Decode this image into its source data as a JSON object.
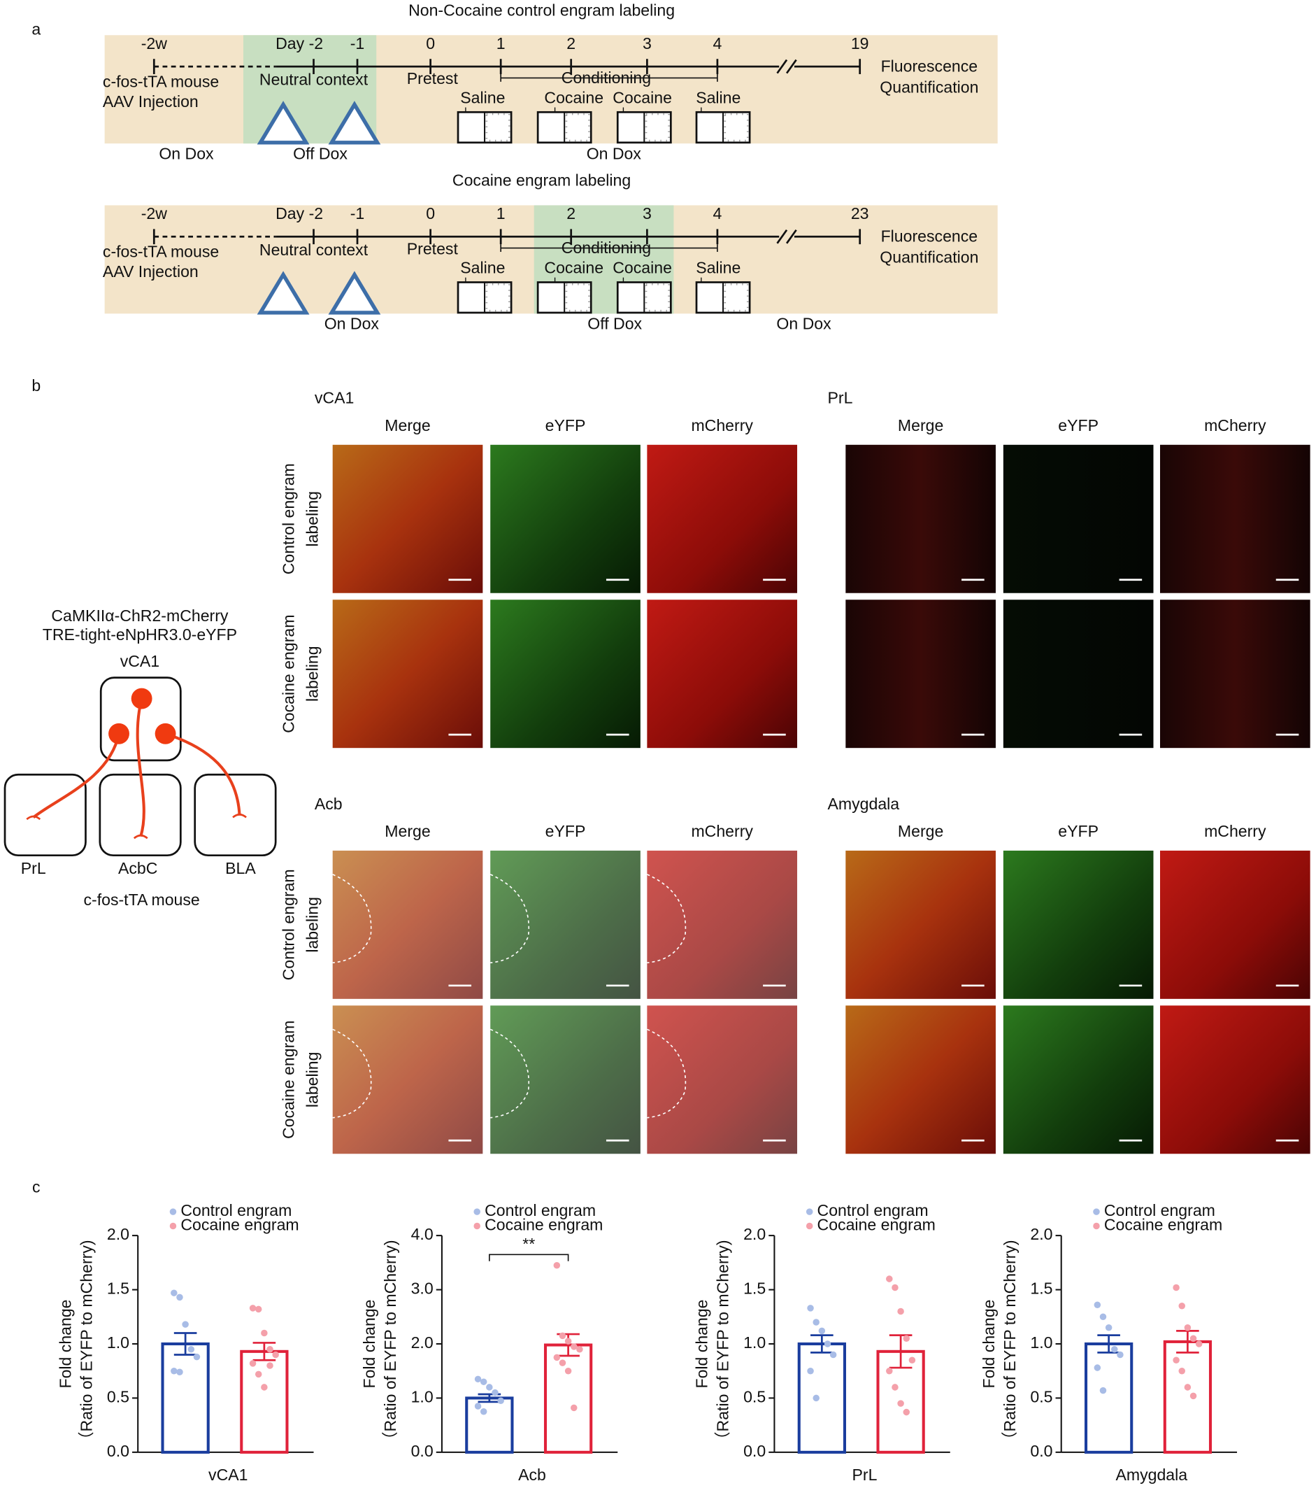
{
  "panel_labels": [
    "a",
    "b",
    "c"
  ],
  "timelines": [
    {
      "title": "Non-Cocaine control engram labeling",
      "ticks": [
        "-2w",
        "Day -2",
        "-1",
        "0",
        "1",
        "2",
        "3",
        "4",
        "19"
      ],
      "left_labels": [
        "c-fos-tTA mouse",
        "AAV Injection"
      ],
      "context": "Neutral context",
      "pretest": "Pretest",
      "conditioning": "Conditioning",
      "sessions": [
        "Saline",
        "Cocaine",
        "Cocaine",
        "Saline"
      ],
      "end_labels": [
        "Fluorescence",
        "Quantification"
      ],
      "dox": [
        "On Dox",
        "Off Dox",
        "On Dox"
      ]
    },
    {
      "title": "Cocaine engram labeling",
      "ticks": [
        "-2w",
        "Day -2",
        "-1",
        "0",
        "1",
        "2",
        "3",
        "4",
        "23"
      ],
      "left_labels": [
        "c-fos-tTA mouse",
        "AAV Injection"
      ],
      "context": "Neutral context",
      "pretest": "Pretest",
      "conditioning": "Conditioning",
      "sessions": [
        "Saline",
        "Cocaine",
        "Cocaine",
        "Saline"
      ],
      "end_labels": [
        "Fluorescence",
        "Quantification"
      ],
      "dox": [
        "On Dox",
        "Off Dox",
        "On Dox"
      ]
    }
  ],
  "diagram": {
    "constructs": [
      "CaMKIIα-ChR2-mCherry",
      "TRE-tight-eNpHR3.0-eYFP"
    ],
    "source": "vCA1",
    "targets": [
      "PrL",
      "AcbC",
      "BLA"
    ],
    "caption": "c-fos-tTA mouse"
  },
  "micrographs": [
    {
      "name": "vCA1",
      "columns": [
        "Merge",
        "eYFP",
        "mCherry"
      ],
      "rows": [
        [
          "Control engram",
          "labeling"
        ],
        [
          "Cocaine engram",
          "labeling"
        ]
      ]
    },
    {
      "name": "PrL",
      "columns": [
        "Merge",
        "eYFP",
        "mCherry"
      ],
      "rows": []
    },
    {
      "name": "Acb",
      "columns": [
        "Merge",
        "eYFP",
        "mCherry"
      ],
      "rows": [
        [
          "Control engram",
          "labeling"
        ],
        [
          "Cocaine engram",
          "labeling"
        ]
      ]
    },
    {
      "name": "Amygdala",
      "columns": [
        "Merge",
        "eYFP",
        "mCherry"
      ],
      "rows": []
    }
  ],
  "chart_data": [
    {
      "type": "bar",
      "xlabel": "vCA1",
      "ylabel": [
        "Fold change",
        "（Ratio of EYFP to mCherry)"
      ],
      "ylim": [
        0,
        2
      ],
      "yticks": [
        {
          "value": 0,
          "label": "0.0"
        },
        0.5,
        {
          "value": 1,
          "label": "1.0"
        },
        1.5,
        {
          "value": 2,
          "label": "2.0"
        }
      ],
      "series": [
        {
          "name": "Control engram",
          "color": "#1a3d9e",
          "point_color": "#a8bce6",
          "values": [
            1.0
          ],
          "errors": [
            0.1
          ],
          "points": [
            1.47,
            1.43,
            1.18,
            0.95,
            0.88,
            0.75,
            0.74
          ]
        },
        {
          "name": "Cocaine engram",
          "color": "#e0223a",
          "point_color": "#f4a0aa",
          "values": [
            0.93
          ],
          "errors": [
            0.08
          ],
          "points": [
            1.33,
            1.32,
            1.1,
            0.95,
            0.9,
            0.82,
            0.72,
            0.6,
            0.8
          ]
        }
      ]
    },
    {
      "type": "bar",
      "xlabel": "Acb",
      "ylabel": [
        "Fold change",
        "（Ratio of EYFP to mCherry)"
      ],
      "ylim": [
        0,
        4
      ],
      "yticks": [
        {
          "value": 0,
          "label": "0.0"
        },
        {
          "value": 1,
          "label": "1.0"
        },
        {
          "value": 2,
          "label": "2.0"
        },
        {
          "value": 3,
          "label": "3.0"
        },
        {
          "value": 4,
          "label": "4.0"
        }
      ],
      "annotation": "**",
      "series": [
        {
          "name": "Control engram",
          "color": "#1a3d9e",
          "point_color": "#a8bce6",
          "values": [
            1.0
          ],
          "errors": [
            0.07
          ],
          "points": [
            1.35,
            1.3,
            1.2,
            1.1,
            0.95,
            0.85,
            0.75
          ]
        },
        {
          "name": "Cocaine engram",
          "color": "#e0223a",
          "point_color": "#f4a0aa",
          "values": [
            1.98
          ],
          "errors": [
            0.2
          ],
          "points": [
            3.45,
            2.15,
            2.05,
            1.95,
            1.9,
            1.75,
            1.65,
            1.5,
            0.82
          ]
        }
      ]
    },
    {
      "type": "bar",
      "xlabel": "PrL",
      "ylabel": [
        "Fold change",
        "（Ratio of EYFP to mCherry)"
      ],
      "ylim": [
        0,
        2
      ],
      "yticks": [
        {
          "value": 0,
          "label": "0.0"
        },
        0.5,
        {
          "value": 1,
          "label": "1.0"
        },
        1.5,
        {
          "value": 2,
          "label": "2.0"
        }
      ],
      "series": [
        {
          "name": "Control engram",
          "color": "#1a3d9e",
          "point_color": "#a8bce6",
          "values": [
            1.0
          ],
          "errors": [
            0.08
          ],
          "points": [
            1.33,
            1.2,
            1.12,
            1.0,
            0.9,
            0.75,
            0.5
          ]
        },
        {
          "name": "Cocaine engram",
          "color": "#e0223a",
          "point_color": "#f4a0aa",
          "values": [
            0.93
          ],
          "errors": [
            0.15
          ],
          "points": [
            1.6,
            1.52,
            1.3,
            1.05,
            0.85,
            0.75,
            0.6,
            0.45,
            0.37
          ]
        }
      ]
    },
    {
      "type": "bar",
      "xlabel": "Amygdala",
      "ylabel": [
        "Fold change",
        "（Ratio of EYFP to mCherry)"
      ],
      "ylim": [
        0,
        2
      ],
      "yticks": [
        {
          "value": 0,
          "label": "0.0"
        },
        0.5,
        {
          "value": 1,
          "label": "1.0"
        },
        1.5,
        {
          "value": 2,
          "label": "2.0"
        }
      ],
      "series": [
        {
          "name": "Control engram",
          "color": "#1a3d9e",
          "point_color": "#a8bce6",
          "values": [
            1.0
          ],
          "errors": [
            0.08
          ],
          "points": [
            1.36,
            1.25,
            1.15,
            0.95,
            0.9,
            0.78,
            0.57
          ]
        },
        {
          "name": "Cocaine engram",
          "color": "#e0223a",
          "point_color": "#f4a0aa",
          "values": [
            1.02
          ],
          "errors": [
            0.1
          ],
          "points": [
            1.52,
            1.35,
            1.15,
            1.05,
            1.0,
            0.85,
            0.75,
            0.6,
            0.52
          ]
        }
      ]
    }
  ]
}
